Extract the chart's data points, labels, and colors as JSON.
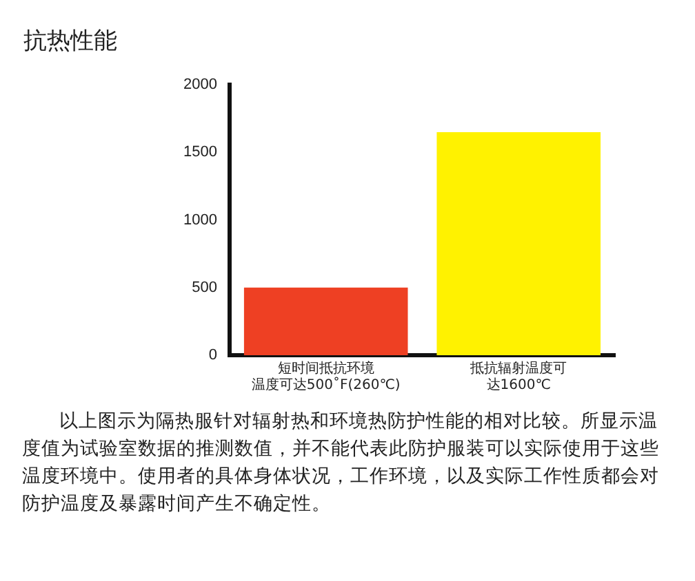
{
  "chart_data": {
    "type": "bar",
    "title": "抗热性能",
    "categories": [
      "短时间抵抗环境温度可达500˚F(260℃)",
      "抵抗辐射温度可达1600℃"
    ],
    "values": [
      500,
      1650
    ],
    "colors": [
      "#ee4023",
      "#fff200"
    ],
    "ylim": [
      0,
      2000
    ],
    "yticks": [
      0,
      500,
      1000,
      1500,
      2000
    ],
    "grid": false,
    "legend": false,
    "annotations": [
      "以上图示为隔热服针对辐射热和环境热防护性能的相对比较。所显示温度值为试验室数据的推测数值，并不能代表此防护服装可以实际使用于这些温度环境中。使用者的具体身体状况，工作环境，以及实际工作性质都会对防护温度及暴露时间产生不确定性。"
    ]
  }
}
